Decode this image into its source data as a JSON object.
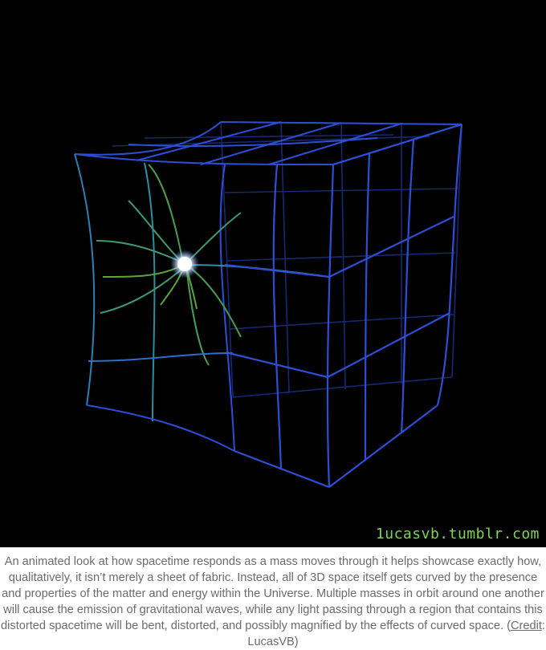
{
  "figure": {
    "watermark": "1ucasvb.tumblr.com",
    "colors": {
      "background": "#000000",
      "grid_blue": "#2d4fd6",
      "grid_teal": "#2e8fa6",
      "grid_green": "#5aa63a",
      "mass": "#ffffff"
    }
  },
  "caption": {
    "text": "An animated look at how spacetime responds as a mass moves through it helps showcase exactly how, qualitatively, it isn’t merely a sheet of fabric. Instead, all of 3D space itself gets curved by the presence and properties of the matter and energy within the Universe. Multiple masses in orbit around one another will cause the emission of gravitational waves, while any light passing through a region that contains this distorted spacetime will be bent, distorted, and possibly magnified by the effects of curved space. (",
    "credit_link": "Credit",
    "credit_suffix": ": LucasVB)"
  }
}
